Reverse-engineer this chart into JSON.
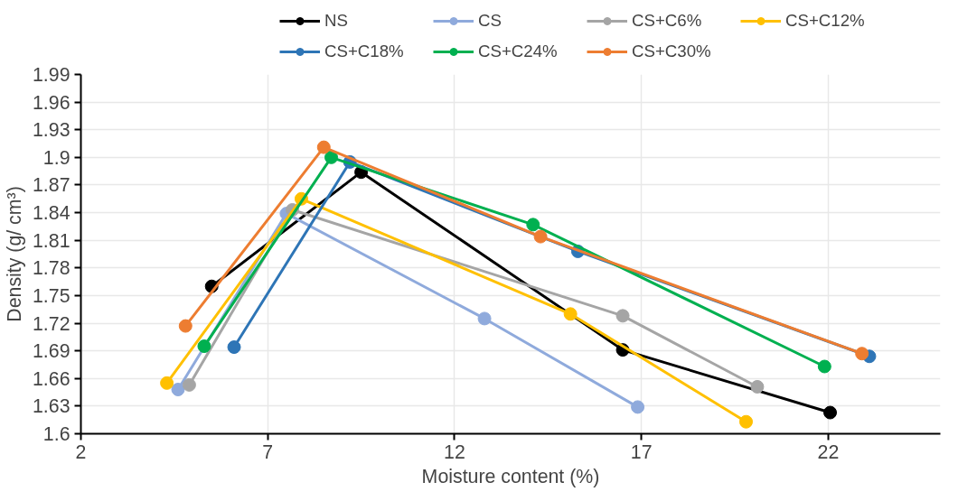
{
  "chart_data": {
    "type": "line",
    "xlabel": "Moisture content (%)",
    "ylabel": "Density (g/ cm³)",
    "xlim": [
      2,
      25
    ],
    "xticks": [
      2,
      7,
      12,
      17,
      22
    ],
    "ylim": [
      1.6,
      1.99
    ],
    "yticks": [
      1.6,
      1.63,
      1.66,
      1.69,
      1.72,
      1.75,
      1.78,
      1.81,
      1.84,
      1.87,
      1.9,
      1.93,
      1.96,
      1.99
    ],
    "grid": true,
    "legend": "top",
    "marker": "circle",
    "line_style": "solid",
    "series": [
      {
        "name": "NS",
        "color": "#000000",
        "x": [
          5.5,
          9.5,
          16.5,
          22.05
        ],
        "values": [
          1.76,
          1.884,
          1.691,
          1.623
        ]
      },
      {
        "name": "CS",
        "color": "#8faadc",
        "x": [
          4.6,
          7.5,
          12.8,
          16.9
        ],
        "values": [
          1.648,
          1.839,
          1.725,
          1.629
        ]
      },
      {
        "name": "CS+C6%",
        "color": "#a5a5a5",
        "x": [
          4.9,
          7.66,
          16.5,
          20.1
        ],
        "values": [
          1.653,
          1.843,
          1.728,
          1.651
        ]
      },
      {
        "name": "CS+C12%",
        "color": "#ffc000",
        "x": [
          4.3,
          7.9,
          15.1,
          19.8
        ],
        "values": [
          1.655,
          1.855,
          1.73,
          1.613
        ]
      },
      {
        "name": "CS+C18%",
        "color": "#2e75b6",
        "x": [
          6.1,
          9.2,
          15.3,
          23.1
        ],
        "values": [
          1.694,
          1.895,
          1.798,
          1.684
        ]
      },
      {
        "name": "CS+C24%",
        "color": "#00b050",
        "x": [
          5.3,
          8.7,
          14.1,
          21.9
        ],
        "values": [
          1.695,
          1.9,
          1.827,
          1.673
        ]
      },
      {
        "name": "CS+C30%",
        "color": "#ed7d31",
        "x": [
          4.8,
          8.5,
          14.3,
          22.9
        ],
        "values": [
          1.717,
          1.911,
          1.814,
          1.687
        ]
      }
    ]
  }
}
